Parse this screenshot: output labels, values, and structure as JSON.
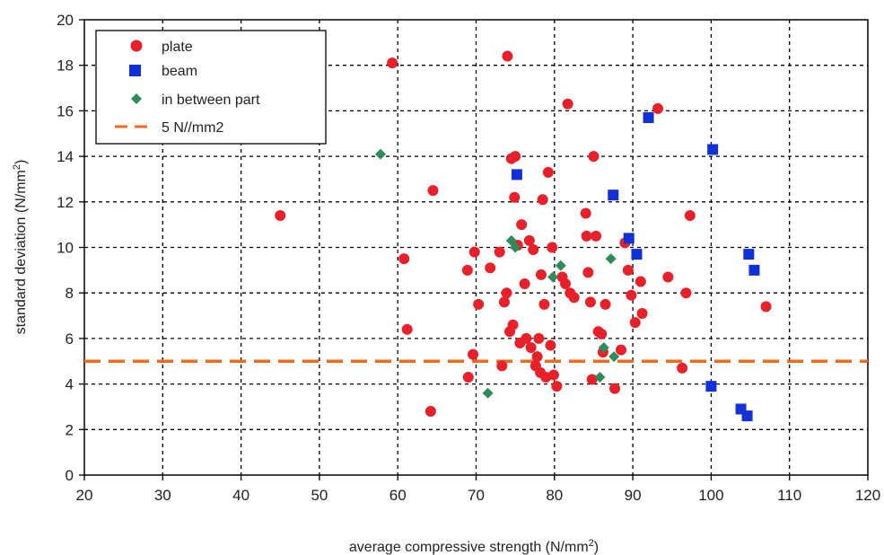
{
  "chart_data": {
    "type": "scatter",
    "xlabel": "average compressive strength (N/mm",
    "xlabel_sup": "2",
    "xlabel_tail": ")",
    "ylabel": "standard deviation (N/mm",
    "ylabel_sup": "2",
    "ylabel_tail": ")",
    "xlim": [
      20,
      120
    ],
    "ylim": [
      0,
      20
    ],
    "x_ticks": [
      20,
      30,
      40,
      50,
      60,
      70,
      80,
      90,
      100,
      110,
      120
    ],
    "y_ticks": [
      0,
      2,
      4,
      6,
      8,
      10,
      12,
      14,
      16,
      18,
      20
    ],
    "grid": true,
    "legend_position": "top-left",
    "series": [
      {
        "name": "plate",
        "marker": "circle",
        "color": "#e8202a",
        "points": [
          [
            45,
            11.4
          ],
          [
            59.3,
            18.1
          ],
          [
            60.8,
            9.5
          ],
          [
            61.2,
            6.4
          ],
          [
            64.2,
            2.8
          ],
          [
            64.5,
            12.5
          ],
          [
            68.9,
            9.0
          ],
          [
            69,
            4.3
          ],
          [
            69.6,
            5.3
          ],
          [
            69.8,
            9.8
          ],
          [
            70.3,
            7.5
          ],
          [
            71.8,
            9.1
          ],
          [
            73,
            9.8
          ],
          [
            73.3,
            4.8
          ],
          [
            73.6,
            7.6
          ],
          [
            73.9,
            8.0
          ],
          [
            74,
            18.4
          ],
          [
            74.3,
            6.3
          ],
          [
            74.5,
            13.9
          ],
          [
            74.7,
            6.6
          ],
          [
            74.9,
            12.2
          ],
          [
            75,
            14.0
          ],
          [
            75.3,
            10.1
          ],
          [
            75.6,
            5.8
          ],
          [
            75.8,
            11.0
          ],
          [
            76.2,
            8.4
          ],
          [
            76.4,
            6.0
          ],
          [
            76.8,
            10.3
          ],
          [
            77.0,
            5.6
          ],
          [
            77.3,
            9.9
          ],
          [
            77.6,
            4.8
          ],
          [
            77.8,
            5.2
          ],
          [
            78.0,
            6.0
          ],
          [
            78.2,
            4.5
          ],
          [
            78.3,
            8.8
          ],
          [
            78.5,
            12.1
          ],
          [
            78.7,
            7.5
          ],
          [
            78.9,
            4.3
          ],
          [
            79.2,
            13.3
          ],
          [
            79.5,
            5.7
          ],
          [
            79.7,
            10.0
          ],
          [
            79.9,
            4.4
          ],
          [
            80.3,
            3.9
          ],
          [
            81,
            8.7
          ],
          [
            81.4,
            8.4
          ],
          [
            81.7,
            16.3
          ],
          [
            82,
            8.0
          ],
          [
            82.5,
            7.8
          ],
          [
            84,
            11.5
          ],
          [
            84.1,
            10.5
          ],
          [
            84.3,
            8.9
          ],
          [
            84.6,
            7.6
          ],
          [
            84.8,
            4.2
          ],
          [
            85,
            14.0
          ],
          [
            85.3,
            10.5
          ],
          [
            85.6,
            6.3
          ],
          [
            86,
            6.2
          ],
          [
            86.2,
            5.4
          ],
          [
            86.5,
            7.5
          ],
          [
            87.7,
            3.8
          ],
          [
            88.5,
            5.5
          ],
          [
            89,
            10.2
          ],
          [
            89.4,
            9.0
          ],
          [
            89.8,
            7.9
          ],
          [
            90.3,
            6.7
          ],
          [
            91,
            8.5
          ],
          [
            91.2,
            7.1
          ],
          [
            93.2,
            16.1
          ],
          [
            94.5,
            8.7
          ],
          [
            96.3,
            4.7
          ],
          [
            96.8,
            8.0
          ],
          [
            97.3,
            11.4
          ],
          [
            107,
            7.4
          ]
        ]
      },
      {
        "name": "beam",
        "marker": "square",
        "color": "#1130d8",
        "points": [
          [
            75.2,
            13.2
          ],
          [
            87.5,
            12.3
          ],
          [
            89.5,
            10.4
          ],
          [
            90.5,
            9.7
          ],
          [
            92,
            15.7
          ],
          [
            100,
            3.9
          ],
          [
            100.2,
            14.3
          ],
          [
            103.8,
            2.9
          ],
          [
            104.6,
            2.6
          ],
          [
            104.8,
            9.7
          ],
          [
            105.5,
            9.0
          ]
        ]
      },
      {
        "name": "in between part",
        "marker": "diamond",
        "color": "#2f8b5a",
        "points": [
          [
            57.8,
            14.1
          ],
          [
            71.5,
            3.6
          ],
          [
            74.5,
            10.3
          ],
          [
            75.0,
            10.0
          ],
          [
            79.8,
            8.7
          ],
          [
            80.8,
            9.2
          ],
          [
            85.8,
            4.3
          ],
          [
            86.3,
            5.6
          ],
          [
            87.2,
            9.5
          ],
          [
            87.6,
            5.2
          ]
        ]
      },
      {
        "name": "5 N//mm2",
        "marker": "dashed-line",
        "color": "#f06a1c",
        "y": 5
      }
    ]
  }
}
